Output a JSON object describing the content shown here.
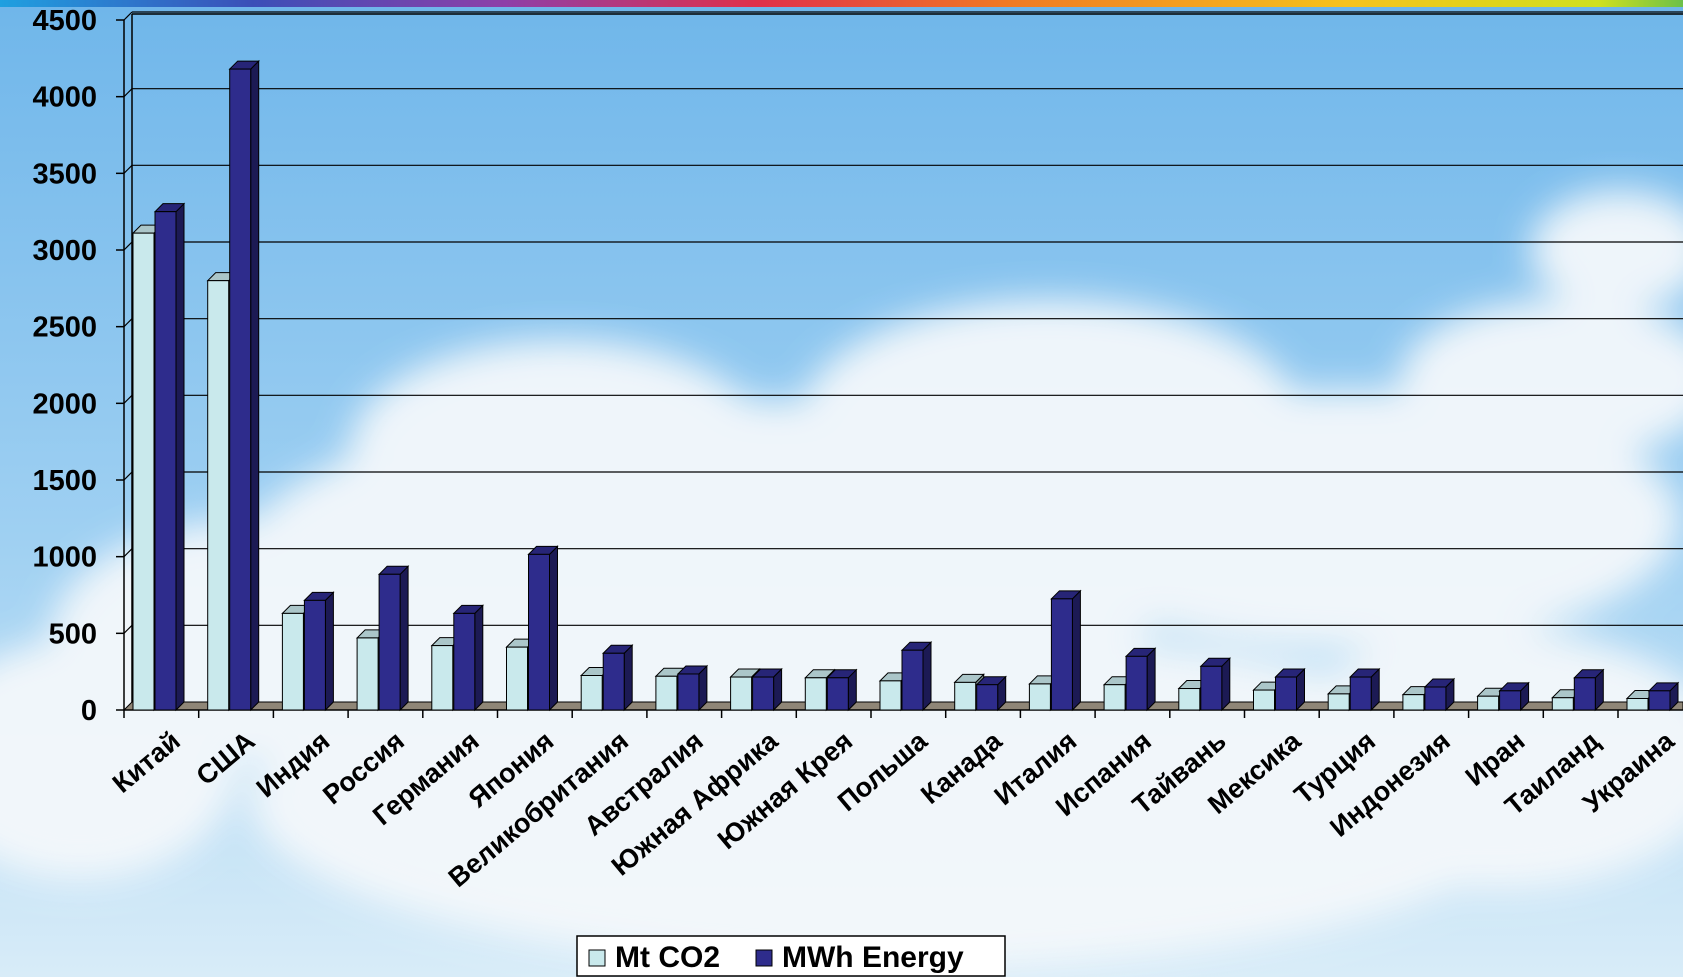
{
  "chart_data": {
    "type": "bar",
    "categories": [
      "Китай",
      "США",
      "Индия",
      "Россия",
      "Германия",
      "Япония",
      "Великобритания",
      "Австралия",
      "Южная Африка",
      "Южная Крея",
      "Польша",
      "Канада",
      "Италия",
      "Испания",
      "Тайвань",
      "Мексика",
      "Турция",
      "Индонезия",
      "Иран",
      "Таиланд",
      "Украина"
    ],
    "series": [
      {
        "name": "Mt CO2",
        "color": "#c9e9ec",
        "values": [
          3110,
          2800,
          630,
          470,
          420,
          410,
          225,
          220,
          215,
          210,
          190,
          180,
          170,
          165,
          140,
          130,
          105,
          100,
          90,
          80,
          75
        ]
      },
      {
        "name": "MWh Energy",
        "color": "#2e2c8c",
        "values": [
          3250,
          4180,
          715,
          885,
          630,
          1015,
          370,
          235,
          215,
          210,
          390,
          165,
          725,
          350,
          285,
          215,
          215,
          150,
          125,
          210,
          125
        ]
      }
    ],
    "yticks": [
      0,
      500,
      1000,
      1500,
      2000,
      2500,
      3000,
      3500,
      4000,
      4500
    ],
    "ylim": [
      0,
      4500
    ],
    "grid": true,
    "legend_position": "bottom-center",
    "title": "",
    "xlabel": "",
    "ylabel": ""
  }
}
